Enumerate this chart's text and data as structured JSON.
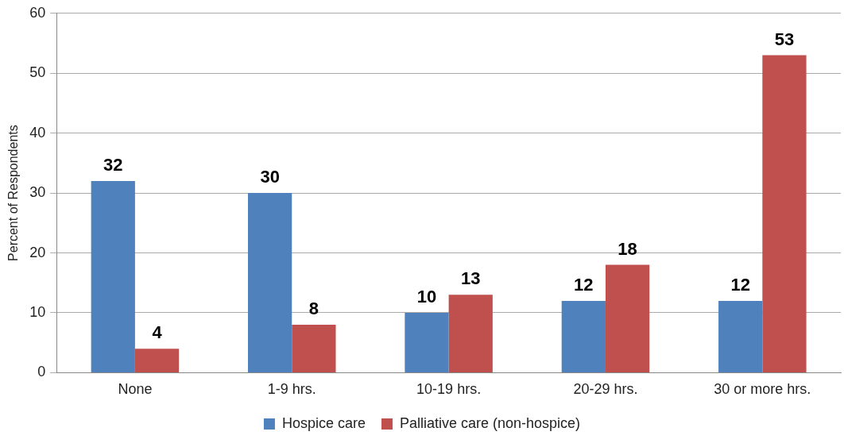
{
  "chart_data": {
    "type": "bar",
    "ylabel": "Percent of Respondents",
    "categories": [
      "None",
      "1-9 hrs.",
      "10-19 hrs.",
      "20-29 hrs.",
      "30 or more hrs."
    ],
    "series": [
      {
        "name": "Hospice care",
        "color": "#4f81bd",
        "values": [
          32,
          30,
          10,
          12,
          12
        ]
      },
      {
        "name": "Palliative care (non-hospice)",
        "color": "#c0504d",
        "values": [
          4,
          8,
          13,
          18,
          53
        ]
      }
    ],
    "ylim": [
      0,
      60
    ],
    "yticks": [
      0,
      10,
      20,
      30,
      40,
      50,
      60
    ],
    "grid": "y",
    "legend": "bottom",
    "data_labels": true
  }
}
